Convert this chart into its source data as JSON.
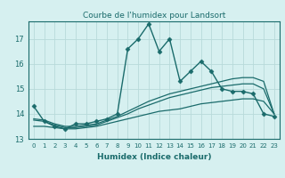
{
  "title": "Courbe de l'humidex pour Landsort",
  "xlabel": "Humidex (Indice chaleur)",
  "background_color": "#d6f0f0",
  "grid_color": "#b8dada",
  "line_color": "#1a6b6b",
  "xlim": [
    -0.5,
    23.5
  ],
  "ylim": [
    13.0,
    17.7
  ],
  "yticks": [
    13,
    14,
    15,
    16,
    17
  ],
  "xticks": [
    0,
    1,
    2,
    3,
    4,
    5,
    6,
    7,
    8,
    9,
    10,
    11,
    12,
    13,
    14,
    15,
    16,
    17,
    18,
    19,
    20,
    21,
    22,
    23
  ],
  "series": [
    {
      "x": [
        0,
        1,
        2,
        3,
        4,
        5,
        6,
        7,
        8,
        9,
        10,
        11,
        12,
        13,
        14,
        15,
        16,
        17,
        18,
        19,
        20,
        21,
        22,
        23
      ],
      "y": [
        14.3,
        13.7,
        13.5,
        13.4,
        13.6,
        13.6,
        13.7,
        13.8,
        14.0,
        16.6,
        17.0,
        17.6,
        16.5,
        17.0,
        15.3,
        15.7,
        16.1,
        15.7,
        15.0,
        14.9,
        14.9,
        14.8,
        14.0,
        13.9
      ],
      "marker": "D",
      "markersize": 2.5,
      "linewidth": 1.0
    },
    {
      "x": [
        0,
        1,
        2,
        3,
        4,
        5,
        6,
        7,
        8,
        9,
        10,
        11,
        12,
        13,
        14,
        15,
        16,
        17,
        18,
        19,
        20,
        21,
        22,
        23
      ],
      "y": [
        13.8,
        13.75,
        13.6,
        13.5,
        13.5,
        13.55,
        13.6,
        13.75,
        13.9,
        14.1,
        14.3,
        14.5,
        14.65,
        14.8,
        14.9,
        15.0,
        15.1,
        15.2,
        15.3,
        15.4,
        15.45,
        15.45,
        15.3,
        14.0
      ],
      "marker": null,
      "markersize": 0,
      "linewidth": 0.9
    },
    {
      "x": [
        0,
        1,
        2,
        3,
        4,
        5,
        6,
        7,
        8,
        9,
        10,
        11,
        12,
        13,
        14,
        15,
        16,
        17,
        18,
        19,
        20,
        21,
        22,
        23
      ],
      "y": [
        13.75,
        13.7,
        13.55,
        13.45,
        13.45,
        13.5,
        13.55,
        13.7,
        13.85,
        14.0,
        14.2,
        14.35,
        14.5,
        14.65,
        14.75,
        14.85,
        14.95,
        15.05,
        15.1,
        15.15,
        15.2,
        15.2,
        15.0,
        14.0
      ],
      "marker": null,
      "markersize": 0,
      "linewidth": 0.9
    },
    {
      "x": [
        0,
        1,
        2,
        3,
        4,
        5,
        6,
        7,
        8,
        9,
        10,
        11,
        12,
        13,
        14,
        15,
        16,
        17,
        18,
        19,
        20,
        21,
        22,
        23
      ],
      "y": [
        13.5,
        13.5,
        13.45,
        13.4,
        13.4,
        13.45,
        13.5,
        13.6,
        13.7,
        13.8,
        13.9,
        14.0,
        14.1,
        14.15,
        14.2,
        14.3,
        14.4,
        14.45,
        14.5,
        14.55,
        14.6,
        14.6,
        14.5,
        14.0
      ],
      "marker": null,
      "markersize": 0,
      "linewidth": 0.9
    }
  ]
}
